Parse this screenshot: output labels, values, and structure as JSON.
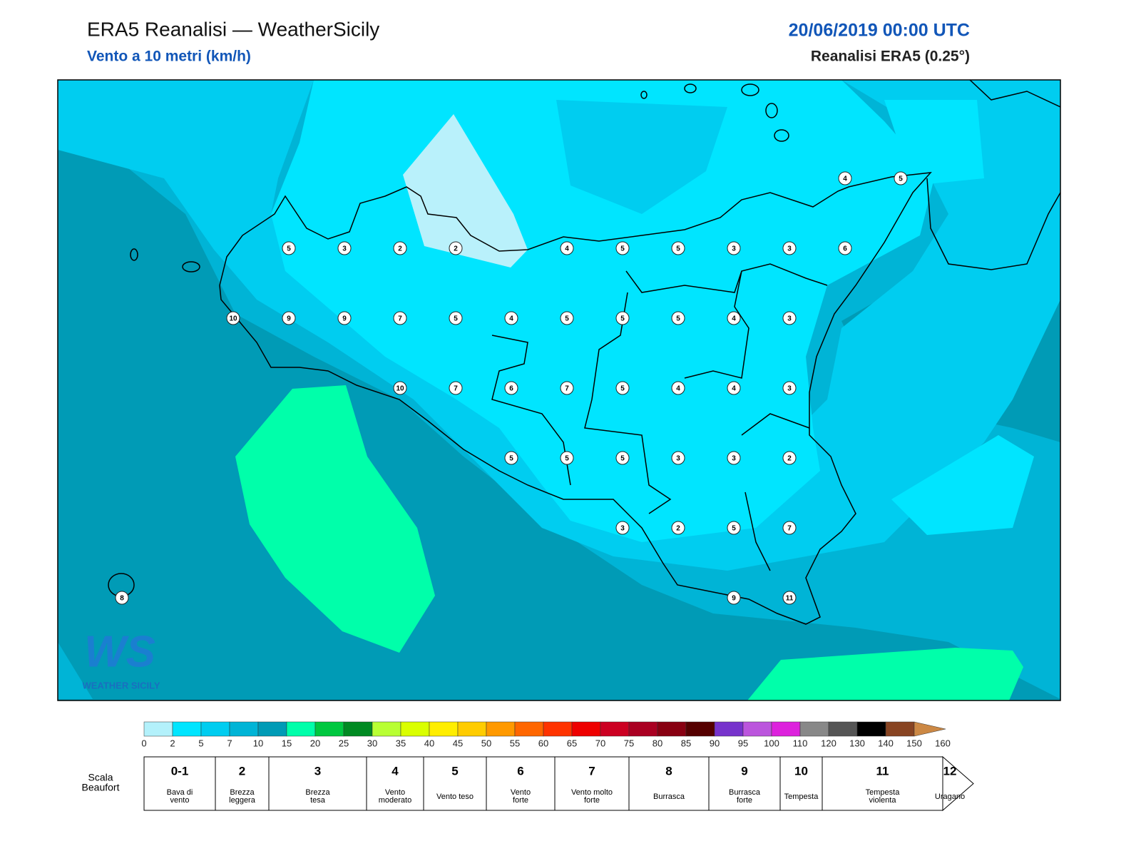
{
  "header": {
    "title": "ERA5 Reanalisi — WeatherSicily",
    "subtitle": "Vento a 10 metri (km/h)",
    "date": "20/06/2019 00:00 UTC",
    "source": "Reanalisi ERA5 (0.25°)"
  },
  "stations": {
    "rows": [
      [
        null,
        null,
        null,
        null,
        null,
        null,
        null,
        null,
        null,
        null,
        null,
        null,
        null,
        4,
        5
      ],
      [
        null,
        null,
        null,
        5,
        3,
        2,
        2,
        null,
        4,
        5,
        5,
        3,
        3,
        6,
        null
      ],
      [
        null,
        null,
        10,
        9,
        9,
        7,
        5,
        4,
        5,
        5,
        5,
        4,
        3,
        null,
        null
      ],
      [
        null,
        null,
        null,
        null,
        null,
        10,
        7,
        6,
        7,
        5,
        4,
        4,
        3,
        null,
        null
      ],
      [
        null,
        null,
        null,
        null,
        null,
        null,
        null,
        5,
        5,
        5,
        3,
        3,
        2,
        null,
        null
      ],
      [
        null,
        null,
        null,
        null,
        null,
        null,
        null,
        null,
        null,
        3,
        2,
        5,
        7,
        null,
        null
      ],
      [
        8,
        null,
        null,
        null,
        null,
        null,
        null,
        null,
        null,
        null,
        null,
        9,
        11,
        null,
        null
      ]
    ]
  },
  "logo": {
    "mark": "WS",
    "text": "WEATHER SICILY"
  },
  "colorbar": {
    "ticks": [
      0,
      2,
      5,
      7,
      10,
      15,
      20,
      25,
      30,
      35,
      40,
      45,
      50,
      55,
      60,
      65,
      70,
      75,
      80,
      85,
      90,
      95,
      100,
      110,
      120,
      130,
      140,
      150,
      160
    ],
    "colors": [
      "#b3f1fb",
      "#00e5ff",
      "#00cdf0",
      "#00b4d6",
      "#009bb6",
      "#00ffaa",
      "#00c840",
      "#008a22",
      "#b8ff33",
      "#daff00",
      "#ffee00",
      "#ffcc00",
      "#ff9900",
      "#ff6600",
      "#ff3300",
      "#ee0000",
      "#cc0022",
      "#aa0022",
      "#880011",
      "#550000",
      "#7733cc",
      "#bb55dd",
      "#dd22dd",
      "#888888",
      "#555555",
      "#000000",
      "#884422",
      "#cc8844"
    ]
  },
  "beaufort": {
    "label": [
      "Scala",
      "Beaufort"
    ],
    "levels": [
      {
        "force": "0-1",
        "name": [
          "Bava di",
          "vento"
        ]
      },
      {
        "force": 2,
        "name": [
          "Brezza",
          "leggera"
        ]
      },
      {
        "force": 3,
        "name": [
          "Brezza",
          "tesa"
        ]
      },
      {
        "force": 4,
        "name": [
          "Vento",
          "moderato"
        ]
      },
      {
        "force": 5,
        "name": [
          "Vento teso"
        ]
      },
      {
        "force": 6,
        "name": [
          "Vento",
          "forte"
        ]
      },
      {
        "force": 7,
        "name": [
          "Vento molto",
          "forte"
        ]
      },
      {
        "force": 8,
        "name": [
          "Burrasca"
        ]
      },
      {
        "force": 9,
        "name": [
          "Burrasca",
          "forte"
        ]
      },
      {
        "force": 10,
        "name": [
          "Tempesta"
        ]
      },
      {
        "force": 11,
        "name": [
          "Tempesta",
          "violenta"
        ]
      },
      {
        "force": 12,
        "name": [
          "Uragano"
        ]
      }
    ]
  }
}
